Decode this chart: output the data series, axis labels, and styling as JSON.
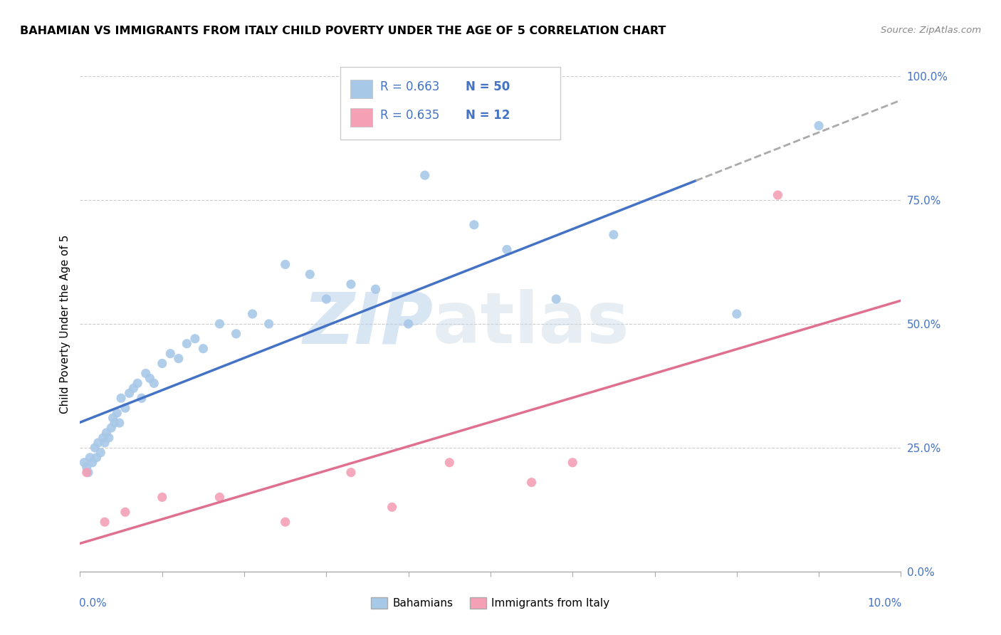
{
  "title": "BAHAMIAN VS IMMIGRANTS FROM ITALY CHILD POVERTY UNDER THE AGE OF 5 CORRELATION CHART",
  "source": "Source: ZipAtlas.com",
  "ylabel": "Child Poverty Under the Age of 5",
  "ytick_values": [
    0,
    25,
    50,
    75,
    100
  ],
  "xlim": [
    0,
    10
  ],
  "ylim": [
    0,
    100
  ],
  "bahamian_color": "#a8c8e8",
  "italy_color": "#f4a0b5",
  "bahamian_line_color": "#4472c4",
  "italy_line_color": "#e07090",
  "legend_label_1": "Bahamians",
  "legend_label_2": "Immigrants from Italy",
  "R1": 0.663,
  "N1": 50,
  "R2": 0.635,
  "N2": 12,
  "watermark_zip": "ZIP",
  "watermark_atlas": "atlas",
  "bahamian_x": [
    0.05,
    0.08,
    0.1,
    0.12,
    0.15,
    0.18,
    0.2,
    0.22,
    0.25,
    0.28,
    0.3,
    0.32,
    0.35,
    0.38,
    0.4,
    0.42,
    0.45,
    0.48,
    0.5,
    0.55,
    0.6,
    0.65,
    0.7,
    0.75,
    0.8,
    0.85,
    0.9,
    1.0,
    1.1,
    1.2,
    1.3,
    1.4,
    1.5,
    1.7,
    1.9,
    2.1,
    2.3,
    2.5,
    2.8,
    3.0,
    3.3,
    3.6,
    4.0,
    4.2,
    4.8,
    5.2,
    5.8,
    6.5,
    8.0,
    9.0
  ],
  "bahamian_y": [
    22,
    21,
    20,
    23,
    22,
    25,
    23,
    26,
    24,
    27,
    26,
    28,
    27,
    29,
    31,
    30,
    32,
    30,
    35,
    33,
    36,
    37,
    38,
    35,
    40,
    39,
    38,
    42,
    44,
    43,
    46,
    47,
    45,
    50,
    48,
    52,
    50,
    62,
    60,
    55,
    58,
    57,
    50,
    80,
    70,
    65,
    55,
    68,
    52,
    90
  ],
  "italy_x": [
    0.08,
    0.3,
    0.55,
    1.0,
    1.7,
    2.5,
    3.3,
    3.8,
    4.5,
    5.5,
    6.0,
    8.5
  ],
  "italy_y": [
    20,
    10,
    12,
    15,
    15,
    10,
    20,
    13,
    22,
    18,
    22,
    76
  ],
  "bahamian_solid_end": 9.2,
  "bahamian_dash_start": 7.5,
  "italy_line_end": 10
}
